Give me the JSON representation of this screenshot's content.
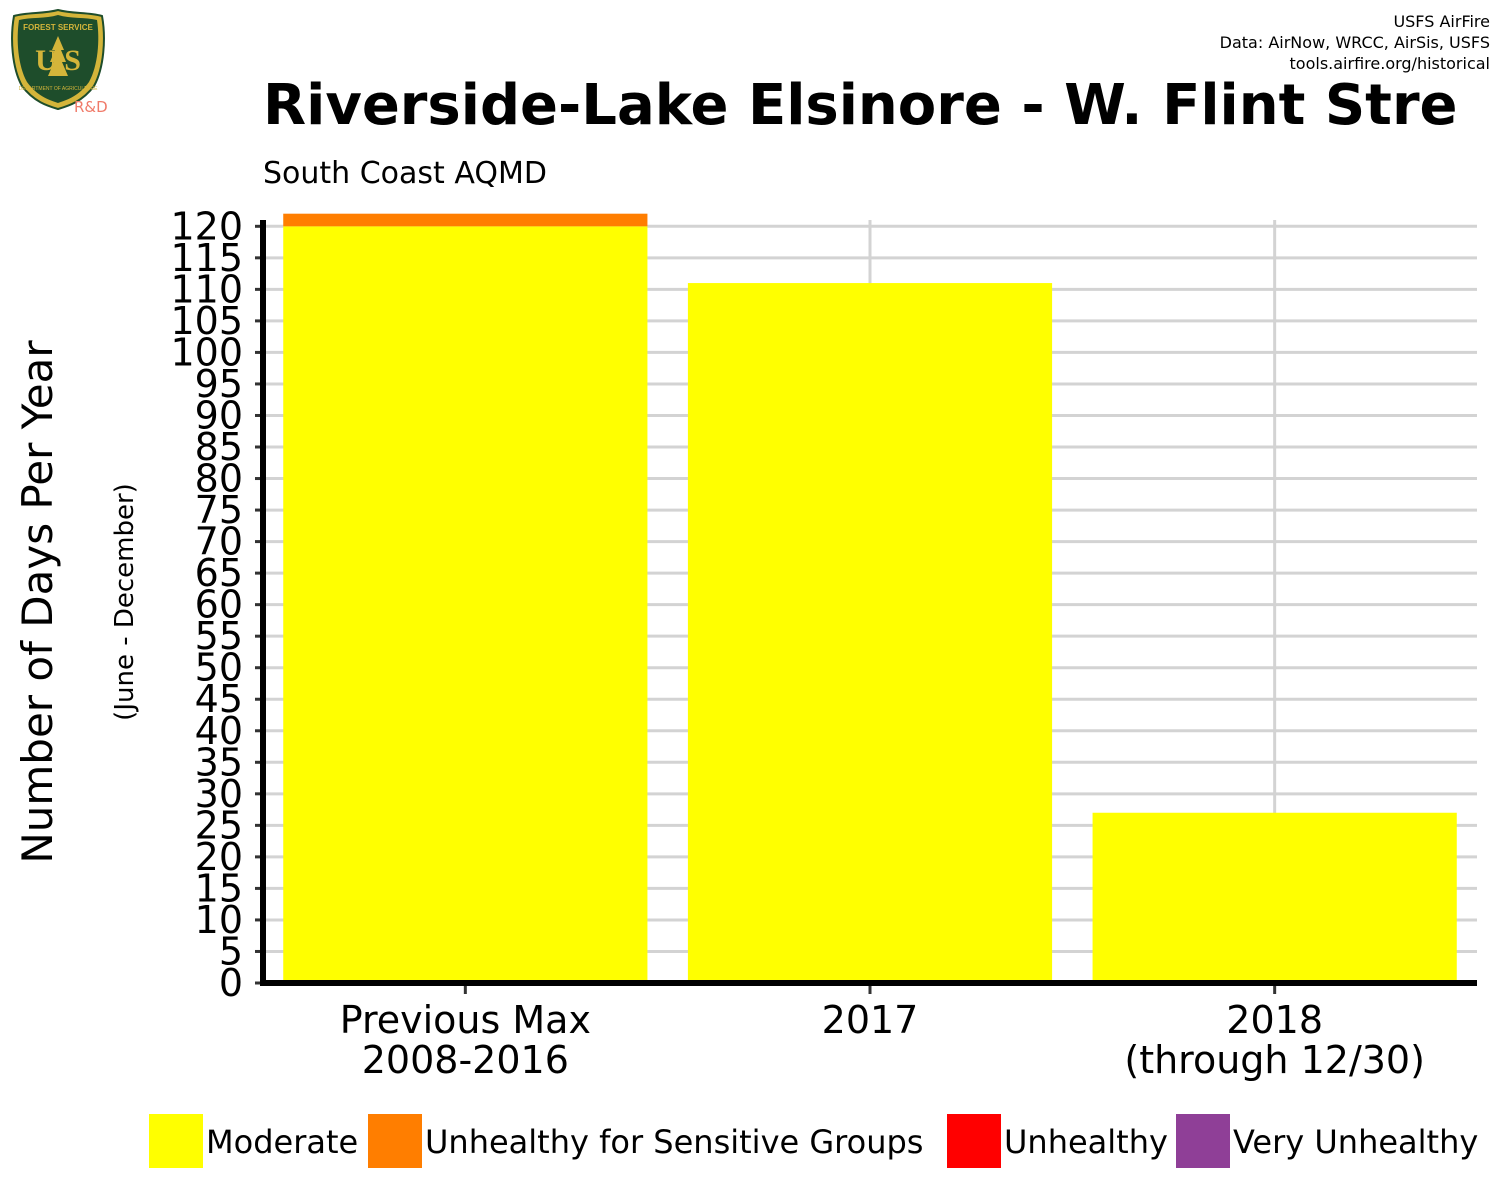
{
  "header": {
    "credit_lines": [
      "USFS AirFire",
      "Data: AirNow, WRCC, AirSis, USFS",
      "tools.airfire.org/historical"
    ],
    "logo_top_text": "FOREST SERVICE",
    "logo_letters": "U S",
    "logo_bottom_text": "DEPARTMENT OF AGRICULTURE",
    "logo_suffix": "R&D"
  },
  "colors": {
    "moderate": "#ffff00",
    "usg": "#ff7e00",
    "unhealthy": "#ff0000",
    "very_unhealthy": "#8f3f97",
    "grid": "#d3d3d3",
    "logo_green": "#1e4d2b",
    "logo_gold": "#d4b53a"
  },
  "chart_data": {
    "type": "bar",
    "stacked": true,
    "title": "Riverside-Lake Elsinore - W. Flint Stre",
    "subtitle": "South Coast AQMD",
    "ylabel": "Number of Days Per Year",
    "ylabel_sub": "(June - December)",
    "xlabel": "",
    "ylim": [
      0,
      121
    ],
    "yticks": [
      0,
      5,
      10,
      15,
      20,
      25,
      30,
      35,
      40,
      45,
      50,
      55,
      60,
      65,
      70,
      75,
      80,
      85,
      90,
      95,
      100,
      105,
      110,
      115,
      120
    ],
    "grid": true,
    "legend_position": "bottom",
    "categories": [
      [
        "Previous Max",
        "2008-2016"
      ],
      [
        "2017"
      ],
      [
        "2018",
        "(through 12/30)"
      ]
    ],
    "series": [
      {
        "name": "Moderate",
        "color": "#ffff00",
        "values": [
          120,
          111,
          27
        ]
      },
      {
        "name": "Unhealthy for Sensitive Groups",
        "color": "#ff7e00",
        "values": [
          2,
          0,
          0
        ]
      },
      {
        "name": "Unhealthy",
        "color": "#ff0000",
        "values": [
          0,
          0,
          0
        ]
      },
      {
        "name": "Very Unhealthy",
        "color": "#8f3f97",
        "values": [
          0,
          0,
          0
        ]
      }
    ]
  }
}
